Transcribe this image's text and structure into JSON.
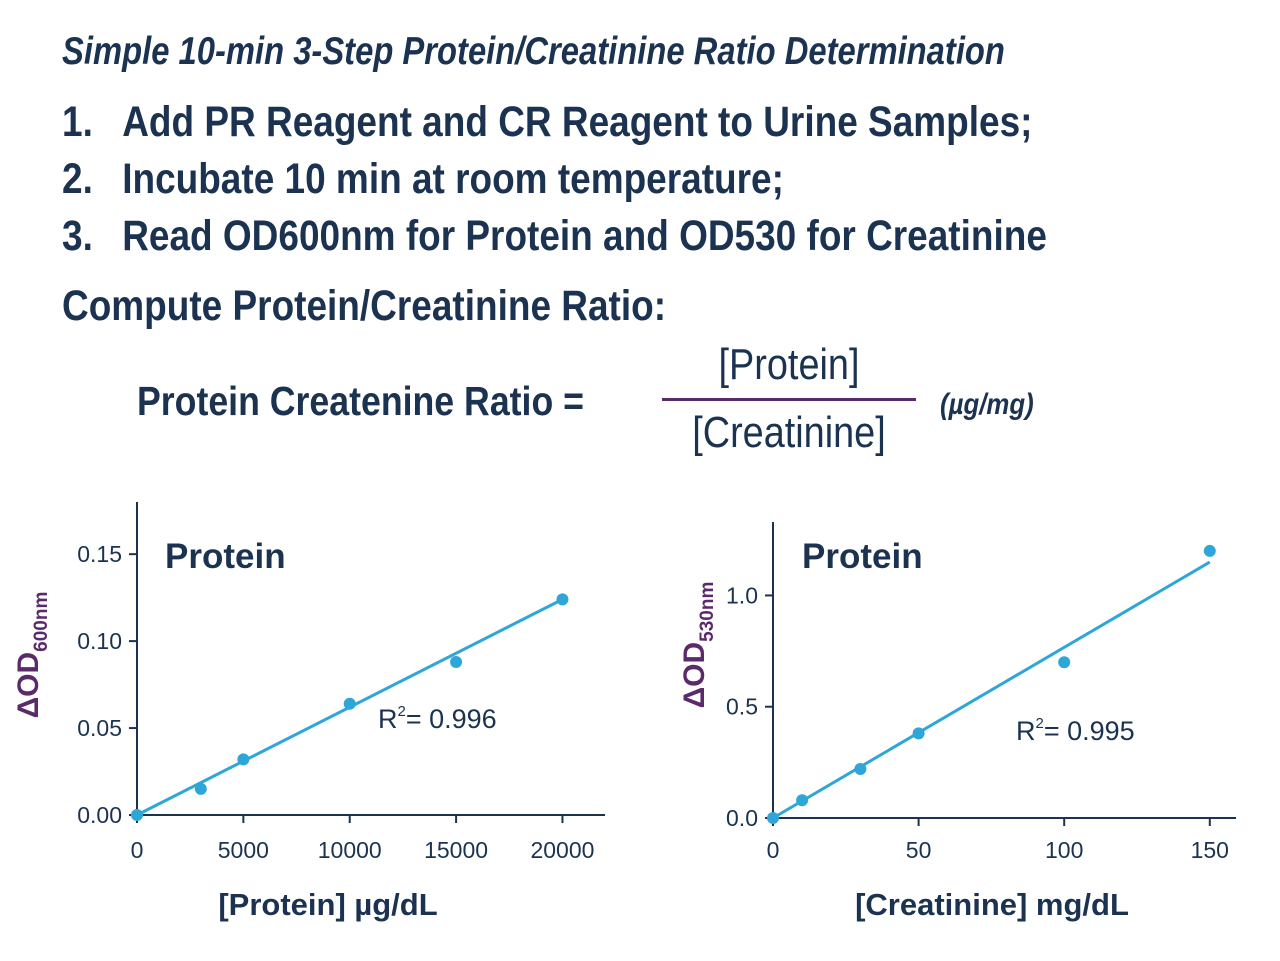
{
  "header": {
    "title": "Simple 10-min 3-Step Protein/Creatinine Ratio Determination",
    "steps": [
      {
        "num": "1.",
        "text": "Add PR Reagent and CR Reagent to Urine Samples;"
      },
      {
        "num": "2.",
        "text": "Incubate 10 min at room temperature;"
      },
      {
        "num": "3.",
        "text": "Read OD600nm for Protein and OD530 for Creatinine"
      }
    ],
    "compute": "Compute Protein/Creatinine Ratio:"
  },
  "formula": {
    "label": "Protein Createnine Ratio =",
    "numerator": "[Protein]",
    "denominator": "[Creatinine]",
    "unit": "(µg/mg)"
  },
  "colors": {
    "points": "#2ea6d8",
    "text": "#1b3350",
    "ylabel": "#5b2a6b",
    "fraction_line": "#5b2a6b"
  },
  "chart_data": [
    {
      "type": "scatter",
      "title": "Protein",
      "xlabel": "[Protein] µg/dL",
      "ylabel_main": "ΔOD",
      "ylabel_sub": "600nm",
      "x": [
        0,
        3000,
        5000,
        10000,
        15000,
        20000
      ],
      "y": [
        0.0,
        0.015,
        0.032,
        0.064,
        0.088,
        0.124
      ],
      "fit": {
        "x": [
          0,
          20000
        ],
        "y": [
          0.0,
          0.124
        ]
      },
      "r2_text": "= 0.996",
      "xlim": [
        0,
        22000
      ],
      "ylim": [
        0,
        0.18
      ],
      "xticks": [
        0,
        5000,
        10000,
        15000,
        20000
      ],
      "xtick_labels": [
        "0",
        "5000",
        "10000",
        "15000",
        "20000"
      ],
      "yticks": [
        0,
        0.05,
        0.1,
        0.15
      ],
      "ytick_labels": [
        "0.00",
        "0.05",
        "0.10",
        "0.15"
      ]
    },
    {
      "type": "scatter",
      "title": "Protein",
      "xlabel": "[Creatinine] mg/dL",
      "ylabel_main": "ΔOD",
      "ylabel_sub": "530nm",
      "x": [
        0,
        10,
        30,
        50,
        100,
        150
      ],
      "y": [
        0.0,
        0.08,
        0.22,
        0.38,
        0.7,
        1.2
      ],
      "fit": {
        "x": [
          0,
          150
        ],
        "y": [
          0.0,
          1.15
        ]
      },
      "r2_text": "= 0.995",
      "xlim": [
        0,
        159
      ],
      "ylim": [
        0,
        1.33
      ],
      "xticks": [
        0,
        50,
        100,
        150
      ],
      "xtick_labels": [
        "0",
        "50",
        "100",
        "150"
      ],
      "yticks": [
        0,
        0.5,
        1.0
      ],
      "ytick_labels": [
        "0.0",
        "0.5",
        "1.0"
      ]
    }
  ]
}
